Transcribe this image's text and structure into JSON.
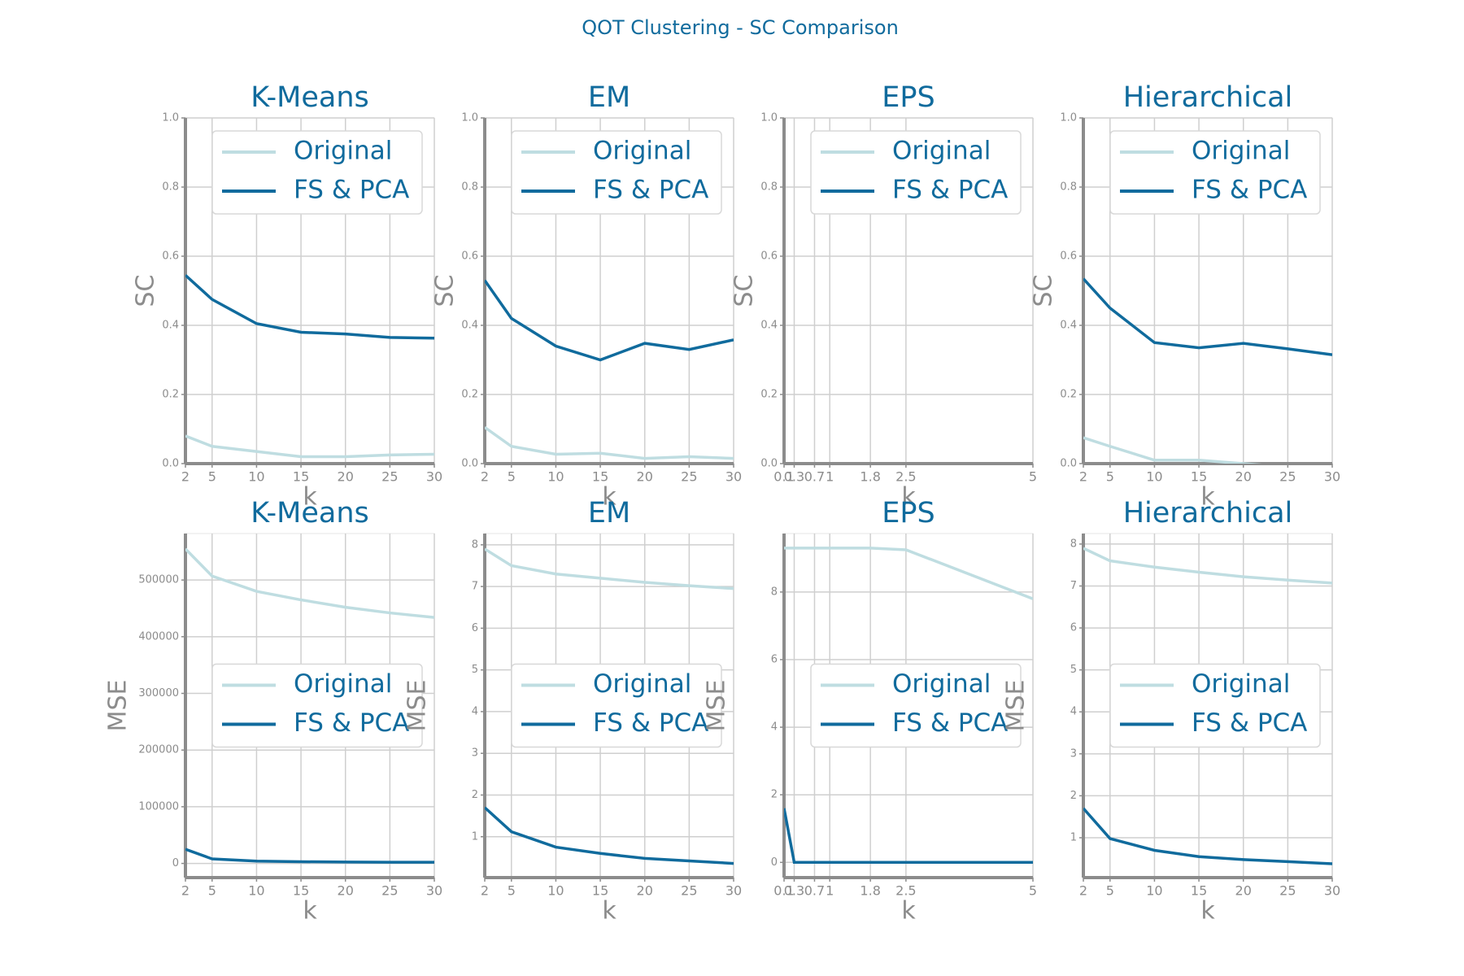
{
  "title": "QOT Clustering - SC Comparison",
  "chart_data": [
    {
      "type": "line",
      "title": "K-Means",
      "xlabel": "k",
      "ylabel": "SC",
      "x": [
        2,
        5,
        10,
        15,
        20,
        25,
        30
      ],
      "xlim": [
        2,
        30
      ],
      "xticks": [
        2,
        5,
        10,
        15,
        20,
        25,
        30
      ],
      "ylim": [
        0,
        1
      ],
      "yticks": [
        {
          "value": 0,
          "label": "0.0"
        },
        0.2,
        0.4,
        0.6,
        0.8,
        {
          "value": 1,
          "label": "1.0"
        }
      ],
      "grid": true,
      "legend": "upper right",
      "series": [
        {
          "name": "Original",
          "color": "#bfdde1",
          "values": [
            0.08,
            0.05,
            0.035,
            0.02,
            0.02,
            0.025,
            0.027
          ]
        },
        {
          "name": "FS & PCA",
          "color": "#106b9d",
          "values": [
            0.545,
            0.475,
            0.405,
            0.38,
            0.375,
            0.365,
            0.363
          ]
        }
      ]
    },
    {
      "type": "line",
      "title": "EM",
      "xlabel": "k",
      "ylabel": "SC",
      "x": [
        2,
        5,
        10,
        15,
        20,
        25,
        30
      ],
      "xlim": [
        2,
        30
      ],
      "xticks": [
        2,
        5,
        10,
        15,
        20,
        25,
        30
      ],
      "ylim": [
        0,
        1
      ],
      "yticks": [
        {
          "value": 0,
          "label": "0.0"
        },
        0.2,
        0.4,
        0.6,
        0.8,
        {
          "value": 1,
          "label": "1.0"
        }
      ],
      "grid": true,
      "legend": "upper right",
      "series": [
        {
          "name": "Original",
          "color": "#bfdde1",
          "values": [
            0.105,
            0.05,
            0.027,
            0.03,
            0.015,
            0.02,
            0.015
          ]
        },
        {
          "name": "FS & PCA",
          "color": "#106b9d",
          "values": [
            0.53,
            0.42,
            0.34,
            0.3,
            0.348,
            0.33,
            0.358
          ]
        }
      ]
    },
    {
      "type": "line",
      "title": "EPS",
      "xlabel": "k",
      "ylabel": "SC",
      "x": [
        0.1,
        0.3,
        0.7,
        1,
        1.8,
        2.5,
        5
      ],
      "xlim": [
        0.1,
        5
      ],
      "xticks": [
        0.1,
        0.3,
        0.7,
        1,
        1.8,
        2.5,
        5
      ],
      "ylim": [
        0,
        1
      ],
      "yticks": [
        {
          "value": 0,
          "label": "0.0"
        },
        0.2,
        0.4,
        0.6,
        0.8,
        {
          "value": 1,
          "label": "1.0"
        }
      ],
      "grid": true,
      "legend": "upper right",
      "series": [
        {
          "name": "Original",
          "color": "#bfdde1",
          "values": [
            null,
            null,
            null,
            null,
            null,
            null,
            null
          ]
        },
        {
          "name": "FS & PCA",
          "color": "#106b9d",
          "values": [
            null,
            null,
            null,
            null,
            null,
            null,
            null
          ]
        }
      ]
    },
    {
      "type": "line",
      "title": "Hierarchical",
      "xlabel": "k",
      "ylabel": "SC",
      "x": [
        2,
        5,
        10,
        15,
        20,
        25,
        30
      ],
      "xlim": [
        2,
        30
      ],
      "xticks": [
        2,
        5,
        10,
        15,
        20,
        25,
        30
      ],
      "ylim": [
        0,
        1
      ],
      "yticks": [
        {
          "value": 0,
          "label": "0.0"
        },
        0.2,
        0.4,
        0.6,
        0.8,
        {
          "value": 1,
          "label": "1.0"
        }
      ],
      "grid": true,
      "legend": "upper right",
      "series": [
        {
          "name": "Original",
          "color": "#bfdde1",
          "values": [
            0.075,
            0.05,
            0.01,
            0.01,
            0,
            -0.01,
            -0.02
          ]
        },
        {
          "name": "FS & PCA",
          "color": "#106b9d",
          "values": [
            0.535,
            0.45,
            0.35,
            0.335,
            0.348,
            0.332,
            0.315
          ]
        }
      ]
    },
    {
      "type": "line",
      "title": "K-Means",
      "xlabel": "k",
      "ylabel": "MSE",
      "x": [
        2,
        5,
        10,
        15,
        20,
        25,
        30
      ],
      "xlim": [
        2,
        30
      ],
      "xticks": [
        2,
        5,
        10,
        15,
        20,
        25,
        30
      ],
      "ylim": [
        -25000,
        582000
      ],
      "yticks": [
        0,
        100000,
        200000,
        300000,
        400000,
        500000
      ],
      "grid": true,
      "legend": "center right",
      "series": [
        {
          "name": "Original",
          "color": "#bfdde1",
          "values": [
            555000,
            507000,
            480000,
            465000,
            452000,
            442000,
            434000
          ]
        },
        {
          "name": "FS & PCA",
          "color": "#106b9d",
          "values": [
            25000,
            8000,
            4000,
            3000,
            2500,
            2000,
            2000
          ]
        }
      ]
    },
    {
      "type": "line",
      "title": "EM",
      "xlabel": "k",
      "ylabel": "MSE",
      "x": [
        2,
        5,
        10,
        15,
        20,
        25,
        30
      ],
      "xlim": [
        2,
        30
      ],
      "xticks": [
        2,
        5,
        10,
        15,
        20,
        25,
        30
      ],
      "ylim": [
        0.02,
        8.27
      ],
      "yticks": [
        1,
        2,
        3,
        4,
        5,
        6,
        7,
        8
      ],
      "grid": true,
      "legend": "center right",
      "series": [
        {
          "name": "Original",
          "color": "#bfdde1",
          "values": [
            7.9,
            7.5,
            7.3,
            7.2,
            7.1,
            7.02,
            6.95
          ]
        },
        {
          "name": "FS & PCA",
          "color": "#106b9d",
          "values": [
            1.7,
            1.12,
            0.75,
            0.6,
            0.48,
            0.42,
            0.36
          ]
        }
      ]
    },
    {
      "type": "line",
      "title": "EPS",
      "xlabel": "k",
      "ylabel": "MSE",
      "x": [
        0.1,
        0.3,
        0.7,
        1,
        1.8,
        2.5,
        5
      ],
      "xlim": [
        0.1,
        5
      ],
      "xticks": [
        0.1,
        0.3,
        0.7,
        1,
        1.8,
        2.5,
        5
      ],
      "ylim": [
        -0.45,
        9.73
      ],
      "yticks": [
        0,
        2,
        4,
        6,
        8
      ],
      "grid": true,
      "legend": "center right",
      "series": [
        {
          "name": "Original",
          "color": "#bfdde1",
          "values": [
            9.3,
            9.3,
            9.3,
            9.3,
            9.3,
            9.25,
            7.8
          ]
        },
        {
          "name": "FS & PCA",
          "color": "#106b9d",
          "values": [
            1.6,
            0,
            0,
            0,
            0,
            0,
            0
          ]
        }
      ]
    },
    {
      "type": "line",
      "title": "Hierarchical",
      "xlabel": "k",
      "ylabel": "MSE",
      "x": [
        2,
        5,
        10,
        15,
        20,
        25,
        30
      ],
      "xlim": [
        2,
        30
      ],
      "xticks": [
        2,
        5,
        10,
        15,
        20,
        25,
        30
      ],
      "ylim": [
        0.05,
        8.25
      ],
      "yticks": [
        1,
        2,
        3,
        4,
        5,
        6,
        7,
        8
      ],
      "grid": true,
      "legend": "center right",
      "series": [
        {
          "name": "Original",
          "color": "#bfdde1",
          "values": [
            7.9,
            7.6,
            7.45,
            7.33,
            7.22,
            7.14,
            7.07
          ]
        },
        {
          "name": "FS & PCA",
          "color": "#106b9d",
          "values": [
            1.7,
            0.98,
            0.7,
            0.55,
            0.48,
            0.43,
            0.38
          ]
        }
      ]
    }
  ]
}
